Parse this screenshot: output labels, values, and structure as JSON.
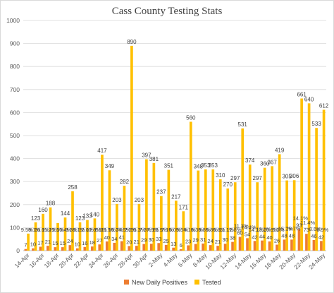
{
  "chart_data": {
    "type": "bar",
    "title": "Cass County Testing Stats",
    "xlabel": "",
    "ylabel": "",
    "ylim": [
      0,
      1000
    ],
    "yticks": [
      0,
      100,
      200,
      300,
      400,
      500,
      600,
      700,
      800,
      900,
      1000
    ],
    "grid": true,
    "legend_position": "bottom",
    "categories": [
      "14-Apr",
      "15-Apr",
      "16-Apr",
      "17-Apr",
      "18-Apr",
      "19-Apr",
      "20-Apr",
      "21-Apr",
      "22-Apr",
      "23-Apr",
      "24-Apr",
      "25-Apr",
      "26-Apr",
      "27-Apr",
      "28-Apr",
      "29-Apr",
      "30-Apr",
      "1-May",
      "2-May",
      "3-May",
      "4-May",
      "5-May",
      "6-May",
      "7-May",
      "8-May",
      "9-May",
      "10-May",
      "11-May",
      "12-May",
      "13-May",
      "14-May",
      "15-May",
      "16-May",
      "17-May",
      "18-May",
      "19-May",
      "20-May",
      "21-May",
      "22-May",
      "23-May",
      "24-May"
    ],
    "x_tick_labels": [
      "14-Apr",
      "16-Apr",
      "18-Apr",
      "20-Apr",
      "22-Apr",
      "24-Apr",
      "26-Apr",
      "28-Apr",
      "30-Apr",
      "2-May",
      "4-May",
      "6-May",
      "8-May",
      "10-May",
      "12-May",
      "14-May",
      "16-May",
      "18-May",
      "20-May",
      "22-May",
      "24-May"
    ],
    "series": [
      {
        "name": "New Daily Positives",
        "color": "#ed7d31",
        "values": [
          7,
          10,
          17,
          21,
          15,
          15,
          24,
          10,
          16,
          18,
          27,
          40,
          34,
          41,
          20,
          21,
          29,
          30,
          33,
          25,
          13,
          6,
          23,
          29,
          31,
          24,
          21,
          30,
          38,
          60,
          54,
          42,
          44,
          40,
          26,
          48,
          48,
          93,
          73,
          46,
          42
        ],
        "labels": [
          "7",
          "10",
          "17",
          "21",
          "15",
          "15",
          "24",
          "10",
          "16",
          "18",
          "27",
          "40",
          "34",
          "41",
          "20",
          "21",
          "29",
          "30",
          "33",
          "25",
          "13",
          "6",
          "23",
          "29",
          "31",
          "24",
          "21",
          "30",
          "38",
          "60",
          "54",
          "42",
          "44",
          "40",
          "26",
          "48",
          "48",
          "93",
          "73",
          "46",
          "42"
        ]
      },
      {
        "name": "Tested",
        "color": "#ffc000",
        "values": [
          74,
          123,
          160,
          188,
          120,
          144,
          258,
          123,
          133,
          140,
          417,
          349,
          203,
          282,
          890,
          203,
          397,
          381,
          237,
          351,
          217,
          171,
          560,
          348,
          353,
          353,
          310,
          270,
          297,
          531,
          374,
          297,
          360,
          367,
          419,
          305,
          306,
          661,
          640,
          533,
          612
        ],
        "labels": [
          "",
          "123",
          "160",
          "188",
          "",
          "144",
          "258",
          "123",
          "133",
          "140",
          "417",
          "349",
          "203",
          "282",
          "890",
          "203",
          "397",
          "381",
          "237",
          "351",
          "217",
          "171",
          "560",
          "348",
          "353",
          "353",
          "310",
          "270",
          "297",
          "531",
          "374",
          "297",
          "360",
          "367",
          "419",
          "305",
          "306",
          "661",
          "640",
          "533",
          "612"
        ]
      }
    ],
    "positivity_labels": [
      "9.5%",
      "8.1%",
      "10.6%",
      "11.2%",
      "12.5%",
      "10.4%",
      "9.3%",
      "8.1%",
      "12.0%",
      "12.9%",
      "6.5%",
      "11.5%",
      "16.7%",
      "14.5%",
      "2.2%",
      "10.3%",
      "7.3%",
      "7.9%",
      "13.9%",
      "7.1%",
      "6.0%",
      "3.5%",
      "4.1%",
      "8.3%",
      "8.8%",
      "6.8%",
      "6.8%",
      "11.1%",
      "12.8%",
      "11.3%",
      "14.4%",
      "14.1%",
      "12.2%",
      "10.9%",
      "6.2%",
      "15.7%",
      "15.7%",
      "14.1%",
      "11.4%",
      "8.6%",
      "6.9%"
    ]
  },
  "legend": [
    {
      "label": "New Daily Positives",
      "color": "#ed7d31"
    },
    {
      "label": "Tested",
      "color": "#ffc000"
    }
  ]
}
